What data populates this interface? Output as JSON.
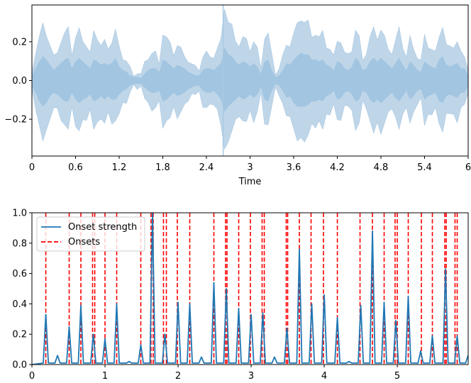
{
  "chart_data": [
    {
      "type": "area",
      "title": "",
      "xlabel": "Time",
      "ylabel": "",
      "xlim": [
        0,
        6
      ],
      "ylim": [
        -0.39,
        0.39
      ],
      "x_ticks": [
        0,
        0.6,
        1.2,
        1.8,
        2.4,
        3.0,
        3.6,
        4.2,
        4.8,
        5.4,
        6.0
      ],
      "x_tick_labels": [
        "0",
        "0.6",
        "1.2",
        "1.8",
        "2.4",
        "3",
        "3.6",
        "4.2",
        "4.8",
        "5.4",
        "6"
      ],
      "y_ticks": [
        -0.2,
        0.0,
        0.2
      ],
      "y_tick_labels": [
        "−0.2",
        "0.0",
        "0.2"
      ],
      "color": "#a9c8e2",
      "series": [
        {
          "envelope_x": [
            0.0,
            0.05,
            0.1,
            0.15,
            0.2,
            0.25,
            0.3,
            0.35,
            0.4,
            0.45,
            0.5,
            0.55,
            0.6,
            0.65,
            0.7,
            0.75,
            0.8,
            0.85,
            0.9,
            0.95,
            1.0,
            1.05,
            1.1,
            1.15,
            1.2,
            1.25,
            1.3,
            1.35,
            1.4,
            1.45,
            1.5,
            1.55,
            1.6,
            1.65,
            1.7,
            1.75,
            1.8,
            1.85,
            1.9,
            1.95,
            2.0,
            2.05,
            2.1,
            2.15,
            2.2,
            2.25,
            2.3,
            2.35,
            2.4,
            2.45,
            2.5,
            2.55,
            2.6,
            2.65,
            2.7,
            2.75,
            2.8,
            2.85,
            2.9,
            2.95,
            3.0,
            3.05,
            3.1,
            3.15,
            3.2,
            3.25,
            3.3,
            3.35,
            3.4,
            3.45,
            3.5,
            3.55,
            3.6,
            3.65,
            3.7,
            3.75,
            3.8,
            3.85,
            3.9,
            3.95,
            4.0,
            4.05,
            4.1,
            4.15,
            4.2,
            4.25,
            4.3,
            4.35,
            4.4,
            4.45,
            4.5,
            4.55,
            4.6,
            4.65,
            4.7,
            4.75,
            4.8,
            4.85,
            4.9,
            4.95,
            5.0,
            5.05,
            5.1,
            5.15,
            5.2,
            5.25,
            5.3,
            5.35,
            5.4,
            5.45,
            5.5,
            5.55,
            5.6,
            5.65,
            5.7,
            5.75,
            5.8,
            5.85,
            5.9,
            5.95,
            6.0
          ],
          "upper": [
            0.06,
            0.14,
            0.22,
            0.28,
            0.24,
            0.18,
            0.12,
            0.16,
            0.2,
            0.24,
            0.26,
            0.14,
            0.22,
            0.26,
            0.22,
            0.18,
            0.14,
            0.24,
            0.22,
            0.18,
            0.2,
            0.18,
            0.2,
            0.26,
            0.16,
            0.12,
            0.1,
            0.06,
            0.04,
            0.04,
            0.03,
            0.08,
            0.12,
            0.14,
            0.14,
            0.1,
            0.24,
            0.22,
            0.18,
            0.14,
            0.18,
            0.16,
            0.14,
            0.1,
            0.08,
            0.06,
            0.06,
            0.12,
            0.14,
            0.14,
            0.12,
            0.16,
            0.2,
            0.38,
            0.3,
            0.28,
            0.22,
            0.18,
            0.22,
            0.2,
            0.16,
            0.2,
            0.16,
            0.08,
            0.22,
            0.24,
            0.12,
            0.04,
            0.06,
            0.12,
            0.2,
            0.18,
            0.24,
            0.28,
            0.32,
            0.3,
            0.3,
            0.24,
            0.24,
            0.22,
            0.24,
            0.18,
            0.16,
            0.12,
            0.22,
            0.2,
            0.14,
            0.12,
            0.16,
            0.26,
            0.22,
            0.12,
            0.14,
            0.22,
            0.26,
            0.22,
            0.26,
            0.22,
            0.18,
            0.14,
            0.2,
            0.26,
            0.18,
            0.12,
            0.22,
            0.18,
            0.12,
            0.1,
            0.22,
            0.18,
            0.16,
            0.14,
            0.24,
            0.28,
            0.18,
            0.16,
            0.18,
            0.2,
            0.14,
            0.14,
            0.06
          ],
          "lower": [
            -0.06,
            -0.14,
            -0.24,
            -0.3,
            -0.26,
            -0.18,
            -0.14,
            -0.16,
            -0.2,
            -0.24,
            -0.24,
            -0.14,
            -0.22,
            -0.26,
            -0.22,
            -0.2,
            -0.16,
            -0.24,
            -0.22,
            -0.18,
            -0.22,
            -0.18,
            -0.22,
            -0.22,
            -0.16,
            -0.12,
            -0.1,
            -0.06,
            -0.04,
            -0.04,
            -0.04,
            -0.08,
            -0.12,
            -0.14,
            -0.14,
            -0.12,
            -0.24,
            -0.22,
            -0.18,
            -0.14,
            -0.18,
            -0.16,
            -0.14,
            -0.1,
            -0.08,
            -0.06,
            -0.06,
            -0.12,
            -0.14,
            -0.14,
            -0.12,
            -0.16,
            -0.22,
            -0.36,
            -0.3,
            -0.26,
            -0.22,
            -0.18,
            -0.22,
            -0.2,
            -0.16,
            -0.2,
            -0.16,
            -0.08,
            -0.22,
            -0.24,
            -0.12,
            -0.04,
            -0.06,
            -0.12,
            -0.2,
            -0.18,
            -0.26,
            -0.3,
            -0.3,
            -0.3,
            -0.28,
            -0.24,
            -0.24,
            -0.22,
            -0.24,
            -0.18,
            -0.16,
            -0.12,
            -0.22,
            -0.2,
            -0.14,
            -0.12,
            -0.16,
            -0.24,
            -0.22,
            -0.12,
            -0.14,
            -0.22,
            -0.26,
            -0.22,
            -0.26,
            -0.22,
            -0.18,
            -0.14,
            -0.2,
            -0.24,
            -0.18,
            -0.12,
            -0.22,
            -0.18,
            -0.12,
            -0.1,
            -0.22,
            -0.18,
            -0.16,
            -0.14,
            -0.24,
            -0.26,
            -0.18,
            -0.16,
            -0.18,
            -0.2,
            -0.14,
            -0.14,
            -0.06
          ],
          "spike": {
            "x": 2.63,
            "min": -0.39,
            "max": 0.39
          }
        }
      ]
    },
    {
      "type": "line",
      "title": "",
      "xlabel": "",
      "ylabel": "",
      "xlim": [
        0,
        5.97
      ],
      "ylim": [
        0,
        1.0
      ],
      "x_ticks": [
        0,
        1,
        2,
        3,
        4,
        5
      ],
      "x_tick_labels": [
        "0",
        "1",
        "2",
        "3",
        "4",
        "5"
      ],
      "y_ticks": [
        0.0,
        0.2,
        0.4,
        0.6,
        0.8,
        1.0
      ],
      "y_tick_labels": [
        "0.0",
        "0.2",
        "0.4",
        "0.6",
        "0.8",
        "1.0"
      ],
      "legend_position": "top-left",
      "series": [
        {
          "name": "Onset strength",
          "color": "#1f77b4",
          "peaks": [
            {
              "x": 0.19,
              "y": 0.33
            },
            {
              "x": 0.35,
              "y": 0.06
            },
            {
              "x": 0.51,
              "y": 0.25
            },
            {
              "x": 0.67,
              "y": 0.39
            },
            {
              "x": 0.84,
              "y": 0.2
            },
            {
              "x": 1.0,
              "y": 0.17
            },
            {
              "x": 1.16,
              "y": 0.4
            },
            {
              "x": 1.33,
              "y": 0.02
            },
            {
              "x": 1.49,
              "y": 0.13
            },
            {
              "x": 1.65,
              "y": 1.0
            },
            {
              "x": 1.82,
              "y": 0.2
            },
            {
              "x": 2.0,
              "y": 0.41
            },
            {
              "x": 2.16,
              "y": 0.4
            },
            {
              "x": 2.32,
              "y": 0.05
            },
            {
              "x": 2.49,
              "y": 0.54
            },
            {
              "x": 2.66,
              "y": 0.5
            },
            {
              "x": 2.83,
              "y": 0.37
            },
            {
              "x": 3.0,
              "y": 0.33
            },
            {
              "x": 3.16,
              "y": 0.34
            },
            {
              "x": 3.32,
              "y": 0.05
            },
            {
              "x": 3.49,
              "y": 0.24
            },
            {
              "x": 3.66,
              "y": 0.76
            },
            {
              "x": 3.83,
              "y": 0.4
            },
            {
              "x": 4.0,
              "y": 0.46
            },
            {
              "x": 4.18,
              "y": 0.31
            },
            {
              "x": 4.34,
              "y": 0.02
            },
            {
              "x": 4.5,
              "y": 0.39
            },
            {
              "x": 4.66,
              "y": 0.88
            },
            {
              "x": 4.82,
              "y": 0.41
            },
            {
              "x": 4.98,
              "y": 0.29
            },
            {
              "x": 5.15,
              "y": 0.45
            },
            {
              "x": 5.32,
              "y": 0.09
            },
            {
              "x": 5.48,
              "y": 0.19
            },
            {
              "x": 5.66,
              "y": 0.63
            },
            {
              "x": 5.82,
              "y": 0.19
            },
            {
              "x": 5.97,
              "y": 0.06
            }
          ]
        },
        {
          "name": "Onsets",
          "color": "#ff0000",
          "style": "dashed",
          "x": [
            0.19,
            0.51,
            0.67,
            0.83,
            0.86,
            1.0,
            1.16,
            1.49,
            1.63,
            1.66,
            1.8,
            1.84,
            1.99,
            2.16,
            2.49,
            2.65,
            2.67,
            2.83,
            2.99,
            3.15,
            3.18,
            3.48,
            3.5,
            3.66,
            3.82,
            3.99,
            4.18,
            4.49,
            4.66,
            4.82,
            4.97,
            5.0,
            5.15,
            5.33,
            5.48,
            5.65,
            5.67,
            5.79,
            5.82
          ]
        }
      ]
    }
  ]
}
